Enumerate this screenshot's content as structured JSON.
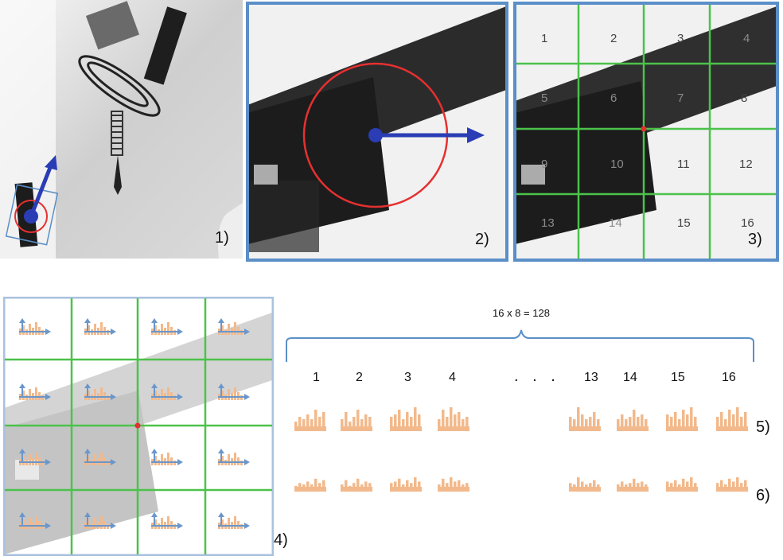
{
  "panels": {
    "p1": {
      "label": "1)"
    },
    "p2": {
      "label": "2)"
    },
    "p3": {
      "label": "3)"
    },
    "p4": {
      "label": "4)"
    }
  },
  "grid_cells": [
    "1",
    "2",
    "3",
    "4",
    "5",
    "6",
    "7",
    "8",
    "9",
    "10",
    "11",
    "12",
    "13",
    "14",
    "15",
    "16"
  ],
  "descriptor": {
    "formula": "16 x 8 = 128",
    "columns_left": [
      "1",
      "2",
      "3",
      "4"
    ],
    "ellipsis": ". . .",
    "columns_right": [
      "13",
      "14",
      "15",
      "16"
    ],
    "row5_label": "5)",
    "row6_label": "6)"
  },
  "colors": {
    "frame_blue": "#5b8fc7",
    "grid_green": "#4cc24a",
    "circle_red": "#e53030",
    "arrow_blue": "#2a3db5",
    "histogram_orange": "#f2b98c"
  }
}
